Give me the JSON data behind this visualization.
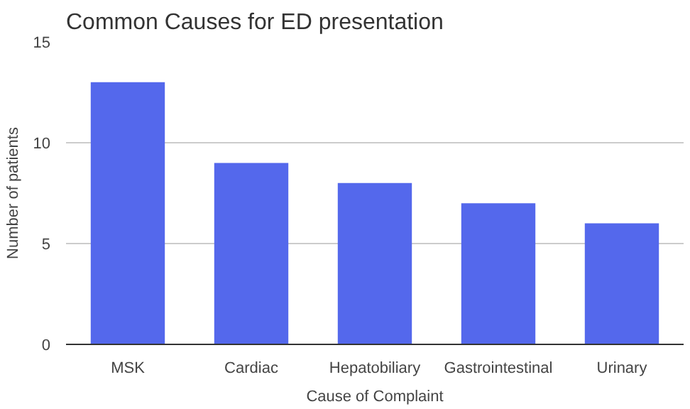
{
  "chart_data": {
    "type": "bar",
    "title": "Common Causes for ED presentation",
    "xlabel": "Cause of Complaint",
    "ylabel": "Number of patients",
    "categories": [
      "MSK",
      "Cardiac",
      "Hepatobiliary",
      "Gastrointestinal",
      "Urinary"
    ],
    "values": [
      13,
      9,
      8,
      7,
      6
    ],
    "color": "#5468ec",
    "ylim": [
      0,
      15
    ],
    "yticks": [
      0,
      5,
      10,
      15
    ],
    "grid": "y"
  }
}
